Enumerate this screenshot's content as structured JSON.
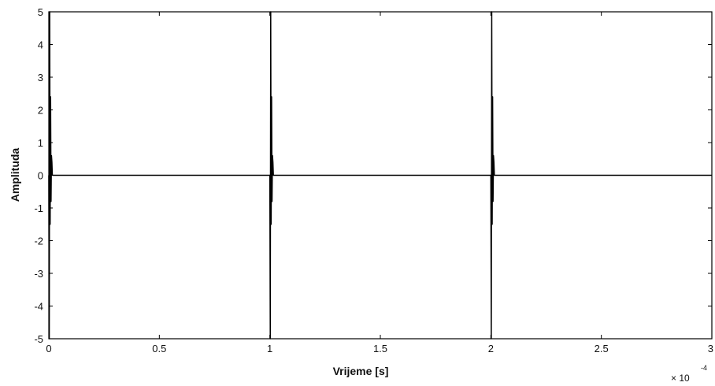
{
  "chart_data": {
    "type": "line",
    "title": "",
    "xlabel": "Vrijeme [s]",
    "ylabel": "Amplituda",
    "x_multiplier": "× 10",
    "x_multiplier_exponent": "-4",
    "xlim": [
      0,
      3
    ],
    "ylim": [
      -5,
      5
    ],
    "grid": false,
    "x_ticks": [
      0,
      0.5,
      1,
      1.5,
      2,
      2.5,
      3
    ],
    "x_tick_labels": [
      "0",
      "0.5",
      "1",
      "1.5",
      "2",
      "2.5",
      "3"
    ],
    "y_ticks": [
      -5,
      -4,
      -3,
      -2,
      -1,
      0,
      1,
      2,
      3,
      4,
      5
    ],
    "y_tick_labels": [
      "-5",
      "-4",
      "-3",
      "-2",
      "-1",
      "0",
      "1",
      "2",
      "3",
      "4",
      "5"
    ],
    "series": [
      {
        "color": "#000000",
        "x": [
          0,
          0.002,
          0.004,
          0.006,
          0.008,
          0.01,
          0.012,
          0.014,
          0.016,
          0.02,
          0.025,
          1.0,
          1.002,
          1.004,
          1.006,
          1.008,
          1.01,
          1.012,
          1.014,
          1.016,
          1.02,
          1.025,
          2.0,
          2.002,
          2.004,
          2.006,
          2.008,
          2.01,
          2.012,
          2.014,
          2.016,
          2.02,
          2.025,
          3.0
        ],
        "y": [
          0,
          -5,
          5,
          -1.5,
          2.4,
          -0.8,
          0.6,
          0.4,
          0,
          0,
          0,
          0,
          -5,
          5,
          -1.5,
          2.4,
          -0.8,
          0.6,
          0.4,
          0,
          0,
          0,
          0,
          -5,
          5,
          -1.5,
          2.4,
          -0.8,
          0.6,
          0.4,
          0,
          0,
          0,
          0
        ]
      }
    ]
  }
}
